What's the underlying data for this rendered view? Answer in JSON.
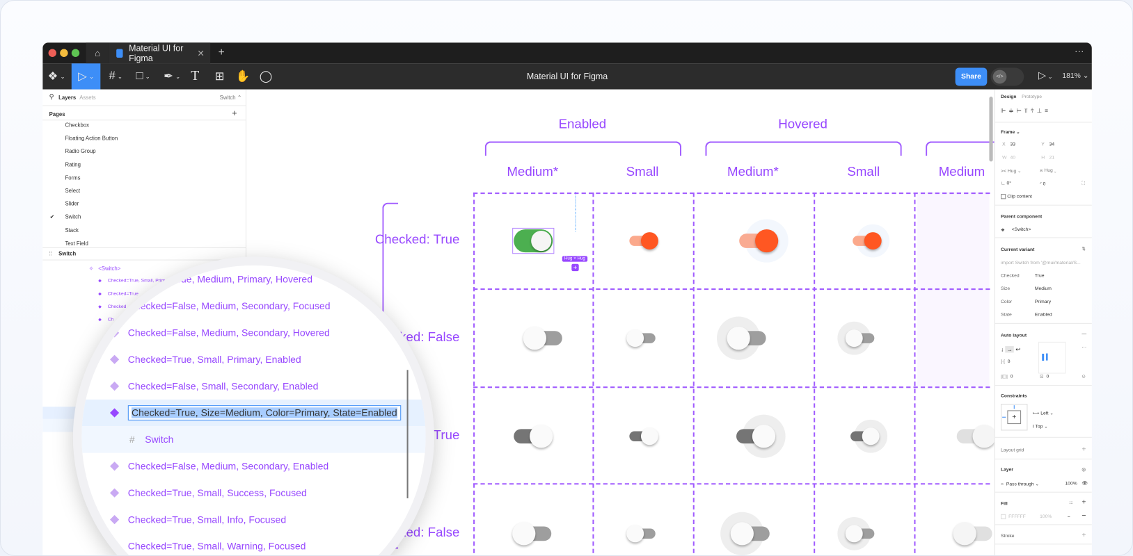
{
  "window": {
    "tab_title": "Material UI for Figma",
    "doc_title": "Material UI for Figma",
    "share_label": "Share",
    "zoom": "181%"
  },
  "left": {
    "tab_layers": "Layers",
    "tab_assets": "Assets",
    "page_select": "Switch",
    "pages_label": "Pages",
    "pages": [
      "Checkbox",
      "Floating Action Button",
      "Radio Group",
      "Rating",
      "Forms",
      "Select",
      "Slider",
      "Switch",
      "Stack",
      "Text Field"
    ],
    "current_page": "Switch",
    "frame_name": "Switch",
    "component": "<Switch>",
    "layers": [
      "Checked=True, Small, Primary, Focused",
      "Checked=True",
      "Checked",
      "Ch"
    ]
  },
  "magnifier": {
    "items": [
      "Checked=True, Medium, Primary, Hovered",
      "Checked=False, Medium, Secondary, Focused",
      "Checked=False, Medium, Secondary, Hovered",
      "Checked=True, Small, Primary, Enabled",
      "Checked=False, Small, Secondary, Enabled",
      "Checked=True, Size=Medium, Color=Primary, State=Enabled",
      "Switch",
      "Checked=False, Medium, Secondary, Enabled",
      "Checked=True, Small, Success, Focused",
      "Checked=True, Small, Info, Focused",
      "Checked=True, Small, Warning, Focused"
    ],
    "selected_index": 5
  },
  "canvas": {
    "groups": [
      "Enabled",
      "Hovered"
    ],
    "columns": [
      "Medium*",
      "Small",
      "Medium*",
      "Small",
      "Medium"
    ],
    "rows": [
      "Checked: True",
      "Checked: False",
      "Checked: True",
      "Checked: False"
    ],
    "hug_label": "Hug × Hug",
    "switches": [
      {
        "row": 0,
        "col": 0,
        "size": "medium",
        "checked": true,
        "track": "#4caf50",
        "thumb": "#f5f5f5",
        "halo": false,
        "selected": true
      },
      {
        "row": 0,
        "col": 1,
        "size": "small",
        "checked": true,
        "track": "#fba98c",
        "thumb": "#ff5722",
        "halo": false
      },
      {
        "row": 0,
        "col": 2,
        "size": "medium",
        "checked": true,
        "track": "#f9ab92",
        "thumb": "#ff5722",
        "halo": true
      },
      {
        "row": 0,
        "col": 3,
        "size": "small",
        "checked": true,
        "track": "#fba98c",
        "thumb": "#ff5722",
        "halo": true
      },
      {
        "row": 1,
        "col": 0,
        "size": "medium",
        "checked": false,
        "track": "#9e9e9e",
        "thumb": "#fafafa",
        "halo": false
      },
      {
        "row": 1,
        "col": 1,
        "size": "small",
        "checked": false,
        "track": "#9e9e9e",
        "thumb": "#fafafa",
        "halo": false
      },
      {
        "row": 1,
        "col": 2,
        "size": "medium",
        "checked": false,
        "track": "#9e9e9e",
        "thumb": "#fafafa",
        "halo": true
      },
      {
        "row": 1,
        "col": 3,
        "size": "small",
        "checked": false,
        "track": "#9e9e9e",
        "thumb": "#fafafa",
        "halo": true
      },
      {
        "row": 2,
        "col": 0,
        "size": "medium",
        "checked": true,
        "track": "#757575",
        "thumb": "#fafafa",
        "halo": false
      },
      {
        "row": 2,
        "col": 1,
        "size": "small",
        "checked": true,
        "track": "#757575",
        "thumb": "#fafafa",
        "halo": false
      },
      {
        "row": 2,
        "col": 2,
        "size": "medium",
        "checked": true,
        "track": "#757575",
        "thumb": "#fafafa",
        "halo": true
      },
      {
        "row": 2,
        "col": 3,
        "size": "small",
        "checked": true,
        "track": "#757575",
        "thumb": "#fafafa",
        "halo": true
      },
      {
        "row": 2,
        "col": 4,
        "size": "medium",
        "checked": true,
        "track": "#e0e0e0",
        "thumb": "#f5f5f5",
        "halo": false
      },
      {
        "row": 3,
        "col": 0,
        "size": "medium",
        "checked": false,
        "track": "#9e9e9e",
        "thumb": "#fafafa",
        "halo": false
      },
      {
        "row": 3,
        "col": 1,
        "size": "small",
        "checked": false,
        "track": "#9e9e9e",
        "thumb": "#fafafa",
        "halo": false
      },
      {
        "row": 3,
        "col": 2,
        "size": "medium",
        "checked": false,
        "track": "#9e9e9e",
        "thumb": "#fafafa",
        "halo": true
      },
      {
        "row": 3,
        "col": 3,
        "size": "small",
        "checked": false,
        "track": "#9e9e9e",
        "thumb": "#fafafa",
        "halo": true
      },
      {
        "row": 3,
        "col": 4,
        "size": "medium",
        "checked": false,
        "track": "#e0e0e0",
        "thumb": "#f5f5f5",
        "halo": false
      }
    ]
  },
  "right": {
    "tab_design": "Design",
    "tab_prototype": "Prototype",
    "frame": "Frame",
    "x_label": "X",
    "x": "33",
    "y_label": "Y",
    "y": "34",
    "w_label": "W",
    "w": "40",
    "h_label": "H",
    "h": "21",
    "w_mode": "Hug",
    "h_mode": "Hug",
    "rotation": "0°",
    "radius": "0",
    "clip": "Clip content",
    "parent_component": "Parent component",
    "parent_name": "<Switch>",
    "current_variant": "Current variant",
    "import": "import Switch from '@mui/material/S...",
    "props": [
      [
        "Checked",
        "True"
      ],
      [
        "Size",
        "Medium"
      ],
      [
        "Color",
        "Primary"
      ],
      [
        "State",
        "Enabled"
      ]
    ],
    "auto_layout": "Auto layout",
    "gap": "0",
    "pad_h": "0",
    "pad_v": "0",
    "constraints": "Constraints",
    "c_h": "Left",
    "c_v": "Top",
    "layout_grid": "Layout grid",
    "layer": "Layer",
    "blend": "Pass through",
    "opacity": "100%",
    "fill": "Fill",
    "fill_hex": "FFFFFF",
    "fill_opacity": "100%",
    "stroke": "Stroke"
  },
  "colors": {
    "accent": "#9747ff",
    "share": "#3d8ef7",
    "toolbar": "#2c2c2c"
  }
}
